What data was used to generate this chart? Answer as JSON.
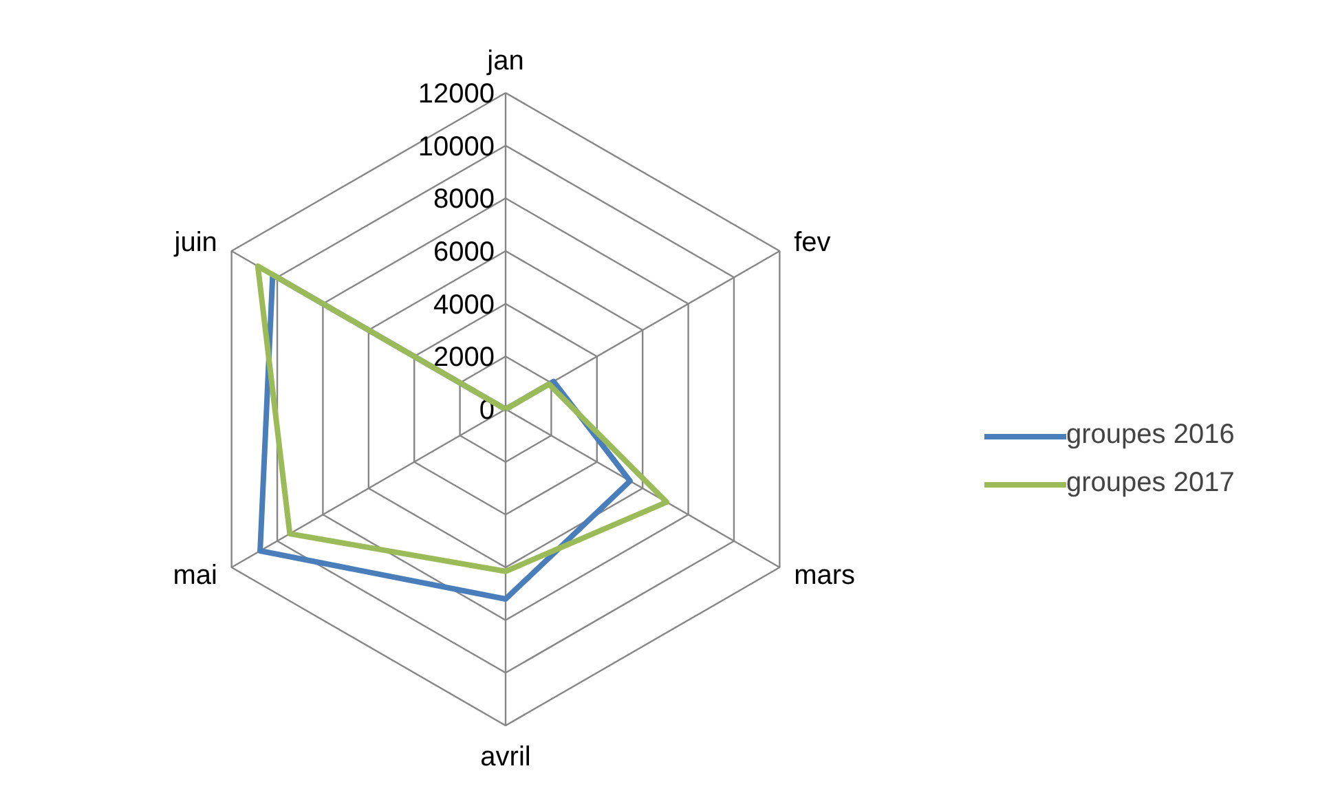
{
  "chart_data": {
    "type": "radar",
    "categories": [
      "jan",
      "fev",
      "mars",
      "avril",
      "mai",
      "juin"
    ],
    "series": [
      {
        "name": "groupes 2016",
        "color": "#4a7ebb",
        "values": [
          0,
          2100,
          5450,
          7200,
          10750,
          10200
        ]
      },
      {
        "name": "groupes 2017",
        "color": "#9bbb59",
        "values": [
          0,
          1900,
          7050,
          6150,
          9450,
          10850
        ]
      }
    ],
    "ylim": [
      0,
      12000
    ],
    "yticks": [
      0,
      2000,
      4000,
      6000,
      8000,
      10000,
      12000
    ],
    "legend": "right"
  }
}
